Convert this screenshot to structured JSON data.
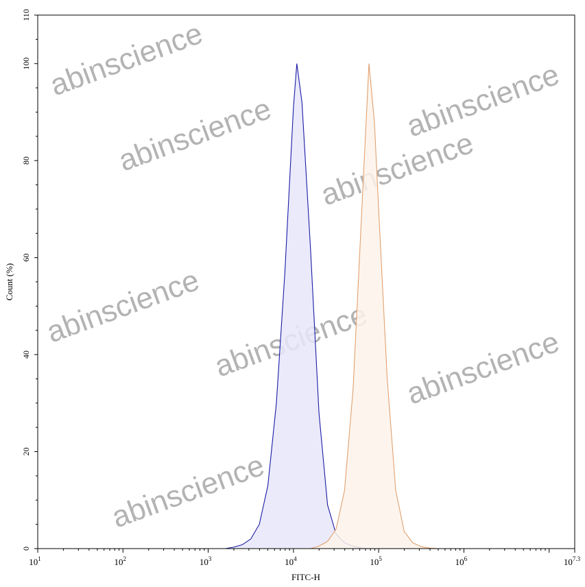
{
  "chart_data": {
    "type": "area",
    "title": "",
    "xlabel": "FITC-H",
    "ylabel": "Count (%)",
    "x_scale": "log",
    "xlim": [
      10,
      19952623
    ],
    "ylim": [
      0,
      110
    ],
    "x_ticks": [
      {
        "base": "10",
        "exp": "1"
      },
      {
        "base": "10",
        "exp": "2"
      },
      {
        "base": "10",
        "exp": "3"
      },
      {
        "base": "10",
        "exp": "4"
      },
      {
        "base": "10",
        "exp": "5"
      },
      {
        "base": "10",
        "exp": "6"
      },
      {
        "base": "10",
        "exp": "7.3"
      }
    ],
    "y_ticks": [
      "0",
      "20",
      "40",
      "60",
      "80",
      "100",
      "110"
    ],
    "grid": false,
    "legend": "none",
    "series": [
      {
        "color": "#1a1aa6",
        "fill": "#e6e6fa",
        "x": [
          1585,
          1995,
          2512,
          3162,
          3981,
          5012,
          6310,
          7943,
          10000,
          10965,
          12589,
          15849,
          19953,
          25119,
          31623,
          39811,
          50119,
          63096,
          79433
        ],
        "y": [
          0,
          0.3,
          0.8,
          2,
          5,
          13,
          30,
          57,
          91,
          100,
          92,
          62,
          28,
          9,
          3,
          1.2,
          0.5,
          0.1,
          0
        ]
      },
      {
        "color": "#e0a070",
        "fill": "#fdf3ea",
        "x": [
          15849,
          19953,
          25119,
          31623,
          39811,
          50119,
          63096,
          76913,
          89125,
          100000,
          125893,
          158489,
          199526,
          251189,
          316228,
          398107,
          501187
        ],
        "y": [
          0,
          0.5,
          1.5,
          4,
          12,
          33,
          69,
          100,
          88,
          70,
          35,
          12,
          3.5,
          1.2,
          0.4,
          0.1,
          0
        ]
      }
    ]
  },
  "watermark": "abinscience"
}
